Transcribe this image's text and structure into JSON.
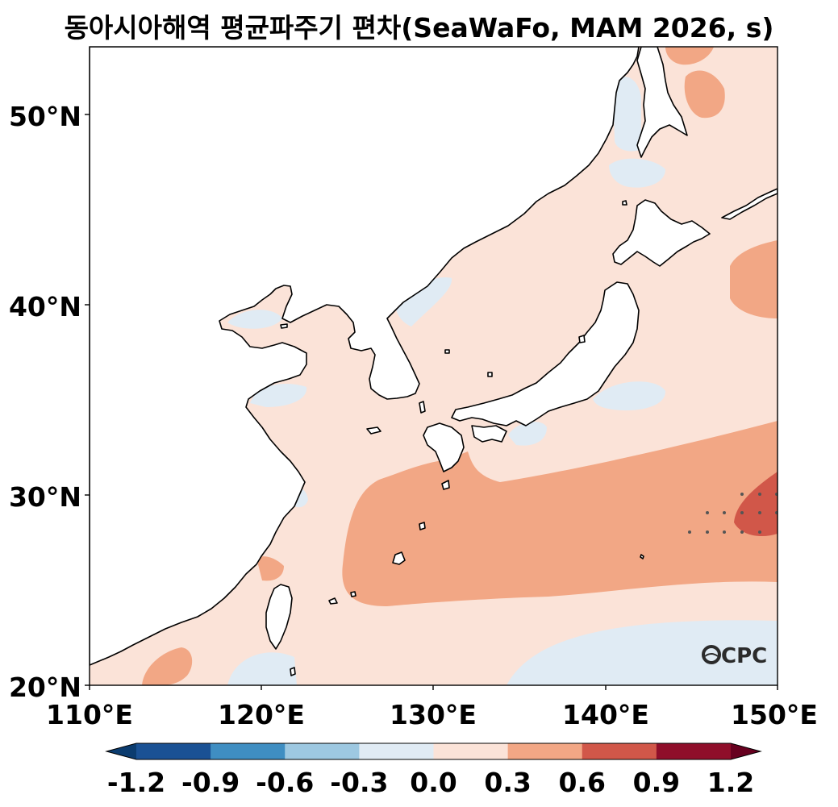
{
  "title": "동아시아해역 평균파주기 편차(SeaWaFo, MAM 2026, s)",
  "map": {
    "lon_range": [
      110,
      150
    ],
    "lat_range": [
      20,
      53.5
    ],
    "lon_ticks": [
      "110°E",
      "120°E",
      "130°E",
      "140°E",
      "150°E"
    ],
    "lat_ticks": [
      "20°N",
      "30°N",
      "40°N",
      "50°N"
    ]
  },
  "colorbar": {
    "labels": [
      "-1.2",
      "-0.9",
      "-0.6",
      "-0.3",
      "0.0",
      "0.3",
      "0.6",
      "0.9",
      "1.2"
    ],
    "colors": [
      "#0b3c6f",
      "#1a5194",
      "#3f8ec2",
      "#9dc8e1",
      "#e0ebf4",
      "#fbe3d8",
      "#f2a785",
      "#d15749",
      "#8f0e2a",
      "#67001f"
    ],
    "extend": "both"
  },
  "logo": {
    "text": "CPC"
  }
}
